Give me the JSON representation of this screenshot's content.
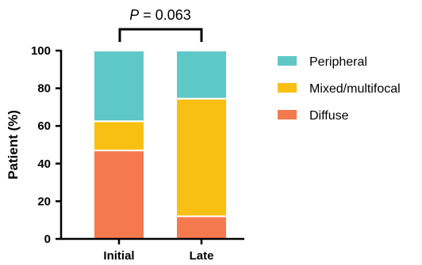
{
  "chart_data": {
    "type": "bar",
    "stacked": true,
    "title": "",
    "xlabel": "",
    "ylabel": "Patient (%)",
    "ylim": [
      0,
      100
    ],
    "yticks": [
      0,
      20,
      40,
      60,
      80,
      100
    ],
    "categories": [
      "Initial",
      "Late"
    ],
    "series": [
      {
        "name": "Diffuse",
        "values": [
          47,
          12
        ],
        "color": "#f47a4e"
      },
      {
        "name": "Mixed/multifocal",
        "values": [
          15.5,
          62.5
        ],
        "color": "#f8c012"
      },
      {
        "name": "Peripheral",
        "values": [
          37.5,
          25.5
        ],
        "color": "#5ec8c8"
      }
    ],
    "legend": {
      "position": "right",
      "order": [
        "Peripheral",
        "Mixed/multifocal",
        "Diffuse"
      ]
    },
    "annotation": {
      "symbol": "P",
      "text": " = 0.063",
      "between": [
        "Initial",
        "Late"
      ]
    }
  }
}
